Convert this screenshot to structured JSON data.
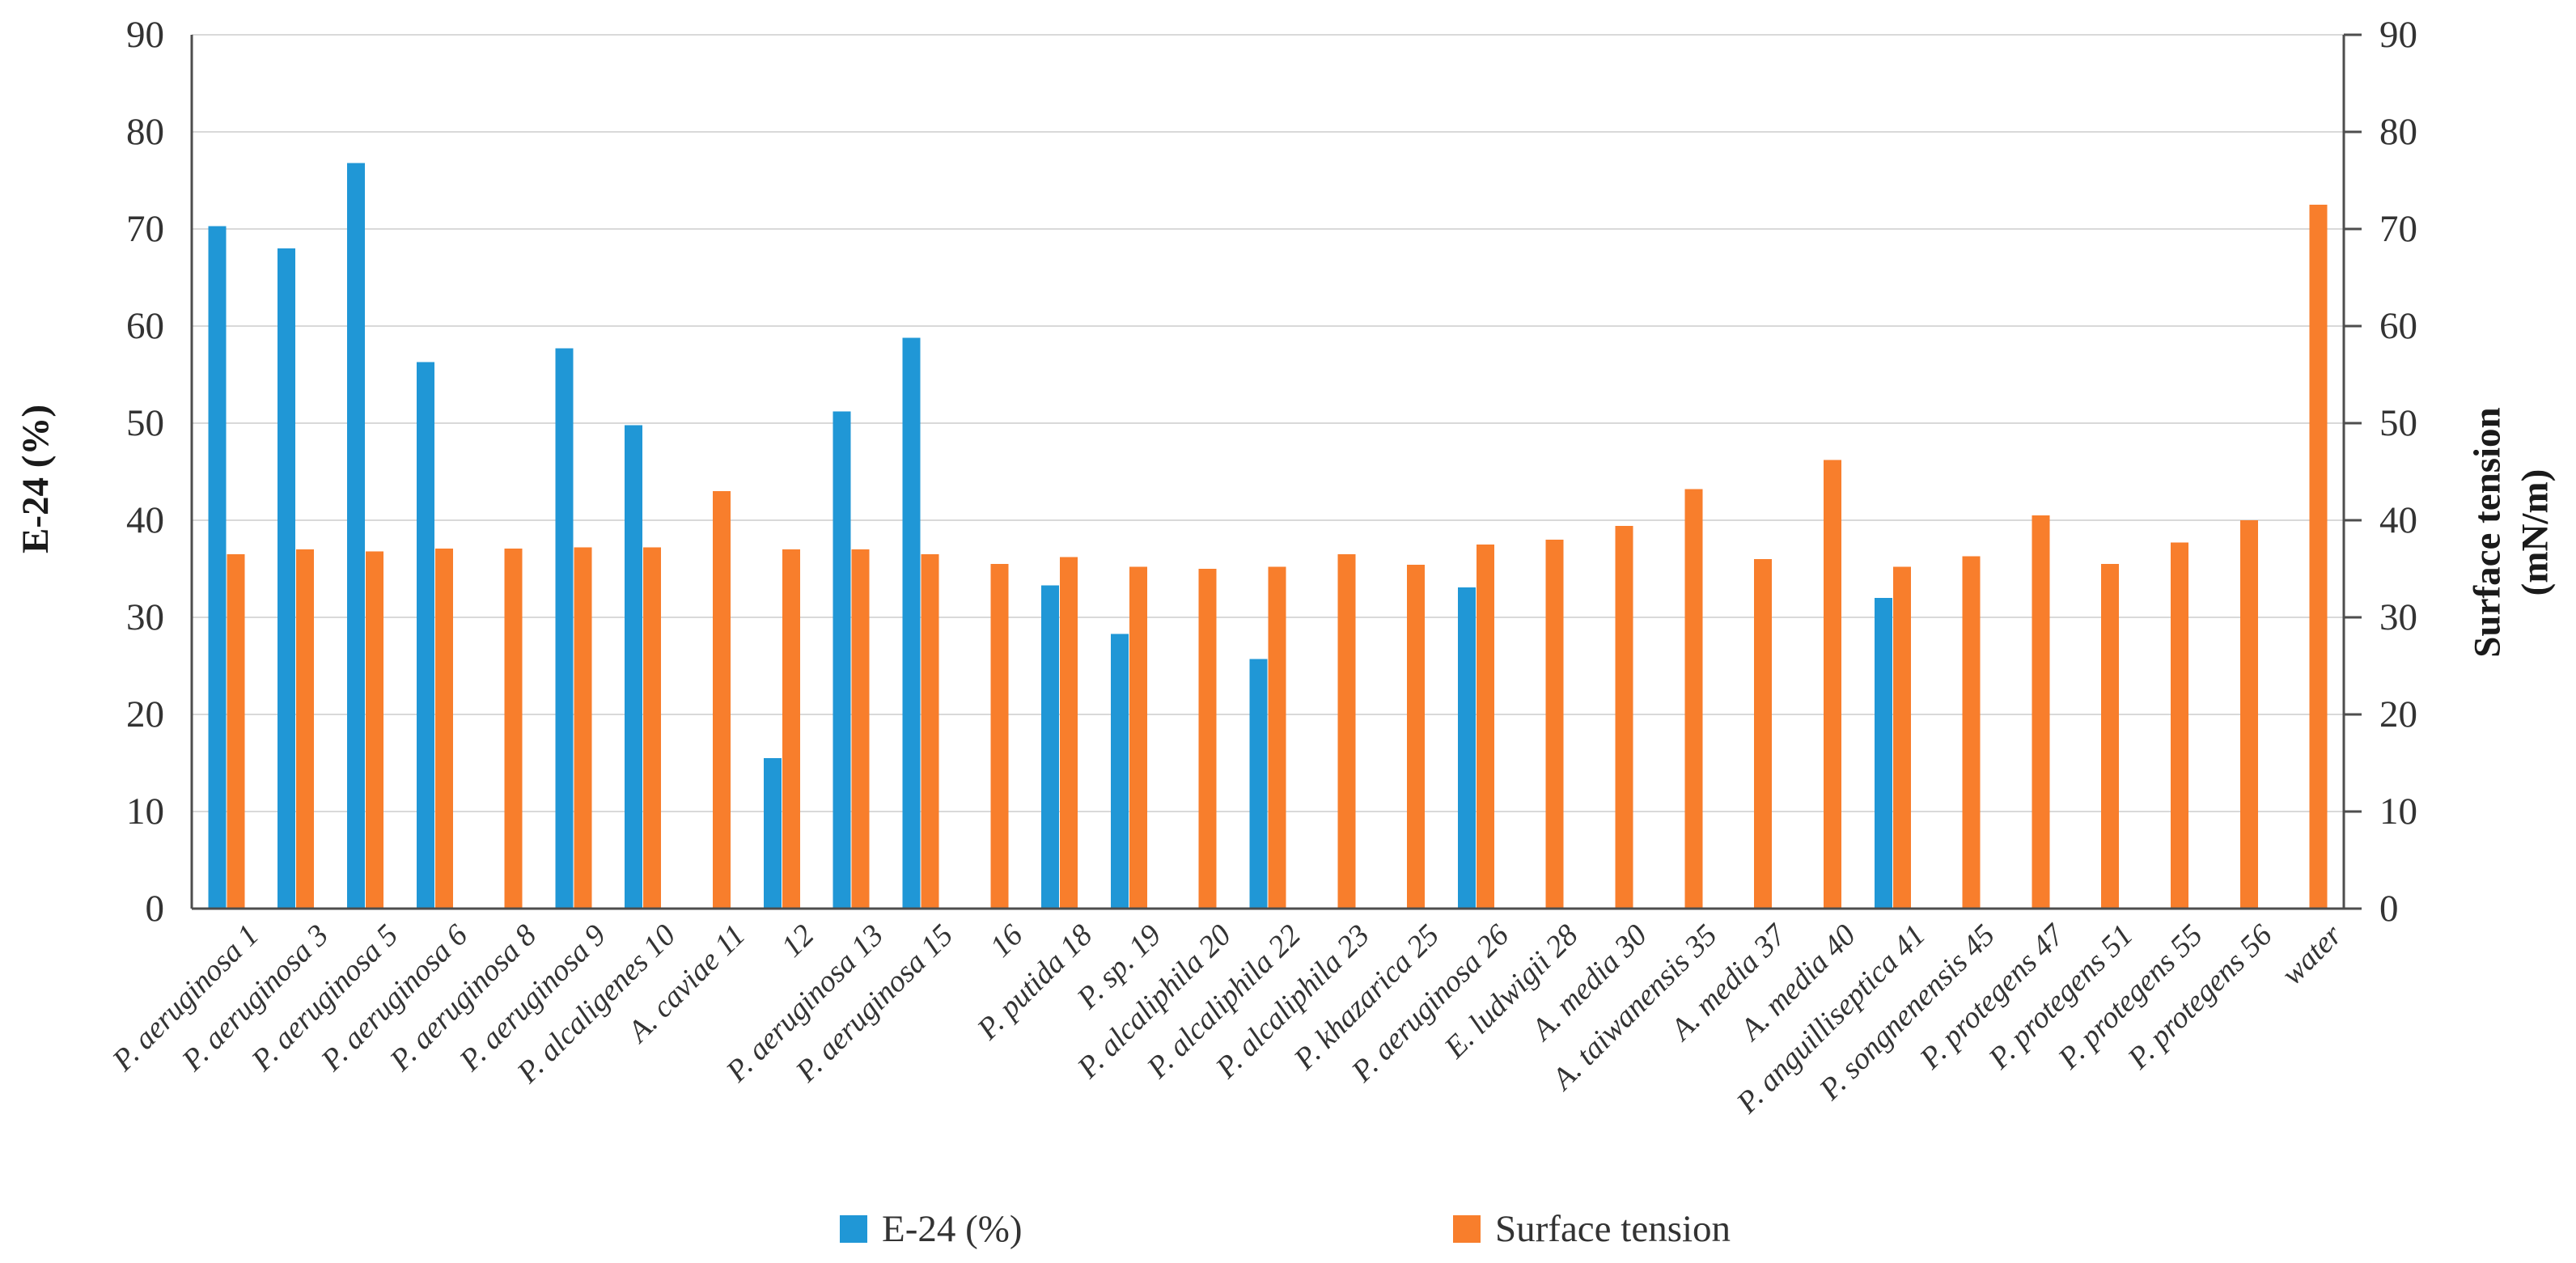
{
  "chart_data": {
    "type": "bar",
    "title": "",
    "categories": [
      "P. aeruginosa 1",
      "P. aeruginosa 3",
      "P. aeruginosa 5",
      "P. aeruginosa 6",
      "P. aeruginosa 8",
      "P. aeruginosa 9",
      "P. alcaligenes 10",
      "A. caviae 11",
      "12",
      "P. aeruginosa 13",
      "P. aeruginosa 15",
      "16",
      "P. putida 18",
      "P. sp. 19",
      "P. alcaliphila 20",
      "P. alcaliphila 22",
      "P. alcaliphila 23",
      "P. khazarica 25",
      "P. aeruginosa 26",
      "E. ludwigii 28",
      "A. media 30",
      "A. taiwanensis 35",
      "A. media 37",
      "A. media 40",
      "P. anguilliseptica 41",
      "P. songnenensis 45",
      "P. protegens 47",
      "P. protegens 51",
      "P. protegens 55",
      "P. protegens 56",
      "water"
    ],
    "series": [
      {
        "name": "E-24 (%)",
        "color": "#2097d6",
        "values": [
          70.3,
          68,
          76.8,
          56.3,
          null,
          57.7,
          49.8,
          null,
          15.5,
          51.2,
          58.8,
          null,
          33.3,
          28.3,
          null,
          25.7,
          null,
          null,
          33.1,
          null,
          null,
          null,
          null,
          null,
          32,
          null,
          null,
          null,
          null,
          null,
          null
        ]
      },
      {
        "name": "Surface tension",
        "color": "#f87e2c",
        "values": [
          36.5,
          37,
          36.8,
          37.1,
          37.1,
          37.2,
          37.2,
          43,
          37,
          37,
          36.5,
          35.5,
          36.2,
          35.2,
          35,
          35.2,
          36.5,
          35.4,
          37.5,
          38,
          39.4,
          43.2,
          36,
          46.2,
          35.2,
          36.3,
          40.5,
          35.5,
          37.7,
          40,
          72.5
        ]
      }
    ],
    "y_left": {
      "title": "E-24 (%)",
      "min": 0,
      "max": 90,
      "tick_step": 10
    },
    "y_right": {
      "title_line1": "Surface tension",
      "title_line2": "(mN/m)",
      "min": 0,
      "max": 90,
      "tick_step": 10
    },
    "yticks": [
      "0",
      "10",
      "20",
      "30",
      "40",
      "50",
      "60",
      "70",
      "80",
      "90"
    ],
    "grid": true,
    "legend_position": "bottom",
    "gridline_color": "#d9d9d9",
    "axis_color": "#4d4d4d"
  },
  "legend": {
    "items": [
      {
        "label": "E-24 (%)",
        "color": "#2097d6"
      },
      {
        "label": "Surface tension",
        "color": "#f87e2c"
      }
    ]
  }
}
